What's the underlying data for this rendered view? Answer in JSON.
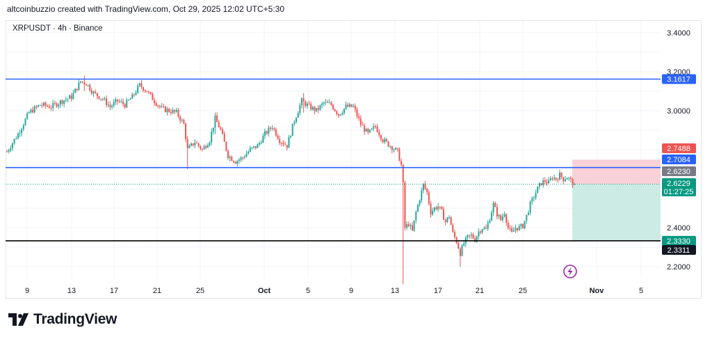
{
  "header": {
    "credit": "altcoinbuzzio created with TradingView.com, Oct 29, 2025 12:02 UTC+5:30"
  },
  "symbol_label": "XRPUSDT · 4h · Binance",
  "footer": {
    "brand": "TradingView",
    "logo_icon": "tradingview-logo-icon"
  },
  "colors": {
    "up": "#26a69a",
    "down": "#ef5350",
    "level_blue": "#2962ff",
    "level_black": "#000000",
    "stop_zone": "#f9d2d7",
    "target_zone": "#cdebe5",
    "grid": "#f0f3fa",
    "last_price": "#089981"
  },
  "chart_data": {
    "type": "candlestick",
    "symbol": "XRPUSDT",
    "interval": "4h",
    "exchange": "Binance",
    "y_axis": {
      "ticks": [
        "3.4000",
        "3.2000",
        "3.0000",
        "2.4000",
        "2.2000"
      ],
      "range": [
        2.14,
        3.46
      ]
    },
    "x_axis": {
      "ticks": [
        "9",
        "13",
        "17",
        "21",
        "25",
        "Oct",
        "5",
        "9",
        "13",
        "17",
        "21",
        "25",
        "Nov",
        "5"
      ]
    },
    "horizontal_levels": [
      {
        "price": 3.1617,
        "label": "3.1617",
        "color": "#2962ff"
      },
      {
        "price": 2.7084,
        "label": "2.7084",
        "color": "#2962ff"
      },
      {
        "price": 2.333,
        "label": "2.3330",
        "color": "#000000"
      }
    ],
    "position_tool": {
      "direction": "short",
      "stop": "2.7488",
      "entry": "2.6230",
      "target": "2.3311"
    },
    "last_price": {
      "value": "2.6229",
      "countdown": "01:27:25"
    },
    "price_path": [
      [
        0,
        2.79
      ],
      [
        6,
        2.88
      ],
      [
        12,
        2.99
      ],
      [
        18,
        3.03
      ],
      [
        24,
        3.02
      ],
      [
        30,
        3.05
      ],
      [
        35,
        3.07
      ],
      [
        40,
        3.15
      ],
      [
        43,
        3.14
      ],
      [
        47,
        3.09
      ],
      [
        52,
        3.06
      ],
      [
        56,
        3.02
      ],
      [
        60,
        3.05
      ],
      [
        64,
        3.03
      ],
      [
        68,
        3.07
      ],
      [
        72,
        3.13
      ],
      [
        76,
        3.1
      ],
      [
        80,
        3.05
      ],
      [
        84,
        3.01
      ],
      [
        88,
        3.0
      ],
      [
        92,
        2.99
      ],
      [
        96,
        2.93
      ],
      [
        98,
        2.8
      ],
      [
        102,
        2.84
      ],
      [
        106,
        2.8
      ],
      [
        110,
        2.85
      ],
      [
        113,
        2.96
      ],
      [
        116,
        2.9
      ],
      [
        120,
        2.77
      ],
      [
        124,
        2.74
      ],
      [
        128,
        2.76
      ],
      [
        132,
        2.8
      ],
      [
        136,
        2.82
      ],
      [
        140,
        2.88
      ],
      [
        144,
        2.92
      ],
      [
        148,
        2.85
      ],
      [
        152,
        2.82
      ],
      [
        156,
        2.95
      ],
      [
        160,
        3.05
      ],
      [
        164,
        3.02
      ],
      [
        168,
        3.0
      ],
      [
        172,
        3.04
      ],
      [
        176,
        3.03
      ],
      [
        180,
        2.98
      ],
      [
        184,
        3.02
      ],
      [
        188,
        3.02
      ],
      [
        192,
        2.93
      ],
      [
        196,
        2.88
      ],
      [
        200,
        2.92
      ],
      [
        204,
        2.85
      ],
      [
        208,
        2.82
      ],
      [
        212,
        2.79
      ],
      [
        214,
        2.72
      ],
      [
        215,
        2.62
      ],
      [
        216,
        2.4
      ],
      [
        218,
        2.42
      ],
      [
        220,
        2.38
      ],
      [
        222,
        2.48
      ],
      [
        224,
        2.55
      ],
      [
        226,
        2.62
      ],
      [
        228,
        2.58
      ],
      [
        230,
        2.48
      ],
      [
        232,
        2.5
      ],
      [
        234,
        2.51
      ],
      [
        236,
        2.48
      ],
      [
        238,
        2.43
      ],
      [
        240,
        2.46
      ],
      [
        242,
        2.37
      ],
      [
        244,
        2.33
      ],
      [
        246,
        2.27
      ],
      [
        248,
        2.32
      ],
      [
        250,
        2.35
      ],
      [
        252,
        2.36
      ],
      [
        254,
        2.34
      ],
      [
        256,
        2.38
      ],
      [
        258,
        2.4
      ],
      [
        260,
        2.39
      ],
      [
        262,
        2.45
      ],
      [
        264,
        2.52
      ],
      [
        266,
        2.47
      ],
      [
        268,
        2.44
      ],
      [
        270,
        2.48
      ],
      [
        272,
        2.4
      ],
      [
        274,
        2.37
      ],
      [
        276,
        2.4
      ],
      [
        278,
        2.4
      ],
      [
        280,
        2.41
      ],
      [
        282,
        2.46
      ],
      [
        284,
        2.52
      ],
      [
        286,
        2.56
      ],
      [
        288,
        2.6
      ],
      [
        290,
        2.63
      ],
      [
        292,
        2.64
      ],
      [
        294,
        2.63
      ],
      [
        296,
        2.66
      ],
      [
        298,
        2.65
      ],
      [
        300,
        2.67
      ],
      [
        302,
        2.65
      ],
      [
        304,
        2.66
      ],
      [
        306,
        2.64
      ],
      [
        308,
        2.6229
      ]
    ],
    "spikes": [
      {
        "index": 98,
        "low": 2.7,
        "high": 2.86
      },
      {
        "index": 215,
        "low": 2.11,
        "high": 2.72
      },
      {
        "index": 246,
        "low": 2.2,
        "high": 2.3
      },
      {
        "index": 42,
        "low": 3.1,
        "high": 3.18
      },
      {
        "index": 113,
        "low": 2.88,
        "high": 2.99
      },
      {
        "index": 161,
        "low": 2.99,
        "high": 3.09
      }
    ]
  }
}
